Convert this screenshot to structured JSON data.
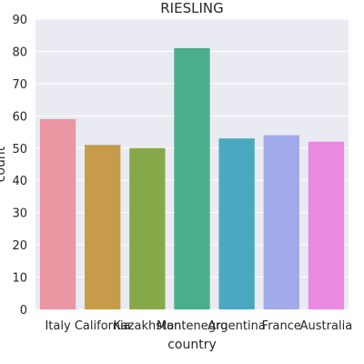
{
  "chart_data": {
    "type": "bar",
    "title": "RIESLING",
    "xlabel": "country",
    "ylabel": "count",
    "categories": [
      "Italy",
      "California",
      "Kazakhstan",
      "Montenegro",
      "Argentina",
      "France",
      "Australia"
    ],
    "values": [
      59,
      51,
      50,
      81,
      53,
      54,
      52
    ],
    "colors": [
      "#ea96a3",
      "#c69b4a",
      "#87a848",
      "#4aae8a",
      "#4aa9c0",
      "#a1aaea",
      "#e88be0"
    ],
    "ylim": [
      0,
      90
    ],
    "yticks": [
      0,
      10,
      20,
      30,
      40,
      50,
      60,
      70,
      80,
      90
    ],
    "grid": true,
    "background": "#eaeaf2"
  }
}
